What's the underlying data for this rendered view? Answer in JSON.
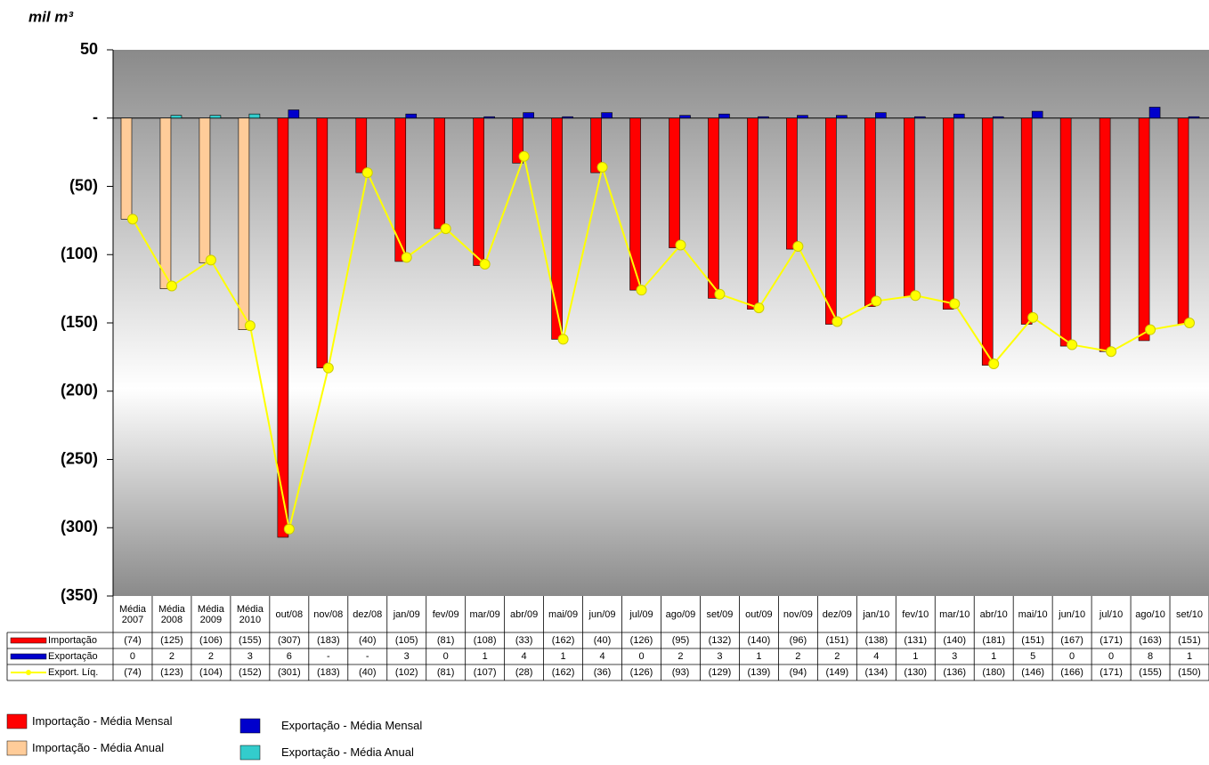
{
  "chart_data": {
    "type": "bar-line-table",
    "y_label": "mil m³",
    "ylim": [
      -350,
      50
    ],
    "yticks": [
      50,
      {
        "value": 0,
        "label": "-"
      },
      {
        "value": -50,
        "label": "(50)"
      },
      {
        "value": -100,
        "label": "(100)"
      },
      {
        "value": -150,
        "label": "(150)"
      },
      {
        "value": -200,
        "label": "(200)"
      },
      {
        "value": -250,
        "label": "(250)"
      },
      {
        "value": -300,
        "label": "(300)"
      },
      {
        "value": -350,
        "label": "(350)"
      }
    ],
    "categories": [
      "Média 2007",
      "Média 2008",
      "Média 2009",
      "Média 2010",
      "out/08",
      "nov/08",
      "dez/08",
      "jan/09",
      "fev/09",
      "mar/09",
      "abr/09",
      "mai/09",
      "jun/09",
      "jul/09",
      "ago/09",
      "set/09",
      "out/09",
      "nov/09",
      "dez/09",
      "jan/10",
      "fev/10",
      "mar/10",
      "abr/10",
      "mai/10",
      "jun/10",
      "jul/10",
      "ago/10",
      "set/10"
    ],
    "series": [
      {
        "name": "Importação",
        "type": "bar",
        "color": "#ff0000",
        "colors": [
          "#ffcc99",
          "#ffcc99",
          "#ffcc99",
          "#ffcc99",
          "#ff0000",
          "#ff0000",
          "#ff0000",
          "#ff0000",
          "#ff0000",
          "#ff0000",
          "#ff0000",
          "#ff0000",
          "#ff0000",
          "#ff0000",
          "#ff0000",
          "#ff0000",
          "#ff0000",
          "#ff0000",
          "#ff0000",
          "#ff0000",
          "#ff0000",
          "#ff0000",
          "#ff0000",
          "#ff0000",
          "#ff0000",
          "#ff0000",
          "#ff0000",
          "#ff0000"
        ],
        "values": [
          -74,
          -125,
          -106,
          -155,
          -307,
          -183,
          -40,
          -105,
          -81,
          -108,
          -33,
          -162,
          -40,
          -126,
          -95,
          -132,
          -140,
          -96,
          -151,
          -138,
          -131,
          -140,
          -181,
          -151,
          -167,
          -171,
          -163,
          -151
        ],
        "value_labels": [
          "(74)",
          "(125)",
          "(106)",
          "(155)",
          "(307)",
          "(183)",
          "(40)",
          "(105)",
          "(81)",
          "(108)",
          "(33)",
          "(162)",
          "(40)",
          "(126)",
          "(95)",
          "(132)",
          "(140)",
          "(96)",
          "(151)",
          "(138)",
          "(131)",
          "(140)",
          "(181)",
          "(151)",
          "(167)",
          "(171)",
          "(163)",
          "(151)"
        ]
      },
      {
        "name": "Exportação",
        "type": "bar",
        "color": "#0000cc",
        "colors": [
          "#33cccc",
          "#33cccc",
          "#33cccc",
          "#33cccc",
          "#0000cc",
          "#0000cc",
          "#0000cc",
          "#0000cc",
          "#0000cc",
          "#0000cc",
          "#0000cc",
          "#0000cc",
          "#0000cc",
          "#0000cc",
          "#0000cc",
          "#0000cc",
          "#0000cc",
          "#0000cc",
          "#0000cc",
          "#0000cc",
          "#0000cc",
          "#0000cc",
          "#0000cc",
          "#0000cc",
          "#0000cc",
          "#0000cc",
          "#0000cc",
          "#0000cc"
        ],
        "values": [
          0,
          2,
          2,
          3,
          6,
          0,
          0,
          3,
          0,
          1,
          4,
          1,
          4,
          0,
          2,
          3,
          1,
          2,
          2,
          4,
          1,
          3,
          1,
          5,
          0,
          0,
          8,
          1
        ],
        "value_labels": [
          "0",
          "2",
          "2",
          "3",
          "6",
          "-",
          "-",
          "3",
          "0",
          "1",
          "4",
          "1",
          "4",
          "0",
          "2",
          "3",
          "1",
          "2",
          "2",
          "4",
          "1",
          "3",
          "1",
          "5",
          "0",
          "0",
          "8",
          "1"
        ]
      },
      {
        "name": "Export. Líq.",
        "type": "line",
        "color": "#ffff00",
        "values": [
          -74,
          -123,
          -104,
          -152,
          -301,
          -183,
          -40,
          -102,
          -81,
          -107,
          -28,
          -162,
          -36,
          -126,
          -93,
          -129,
          -139,
          -94,
          -149,
          -134,
          -130,
          -136,
          -180,
          -146,
          -166,
          -171,
          -155,
          -150
        ],
        "value_labels": [
          "(74)",
          "(123)",
          "(104)",
          "(152)",
          "(301)",
          "(183)",
          "(40)",
          "(102)",
          "(81)",
          "(107)",
          "(28)",
          "(162)",
          "(36)",
          "(126)",
          "(93)",
          "(129)",
          "(139)",
          "(94)",
          "(149)",
          "(134)",
          "(130)",
          "(136)",
          "(180)",
          "(146)",
          "(166)",
          "(171)",
          "(155)",
          "(150)"
        ]
      }
    ],
    "legend": [
      {
        "label": "Importação - Média Mensal",
        "color": "#ff0000"
      },
      {
        "label": "Importação - Média Anual",
        "color": "#ffcc99"
      },
      {
        "label": "Exportação - Média Mensal",
        "color": "#0000cc"
      },
      {
        "label": "Exportação - Média Anual",
        "color": "#33cccc"
      }
    ]
  }
}
